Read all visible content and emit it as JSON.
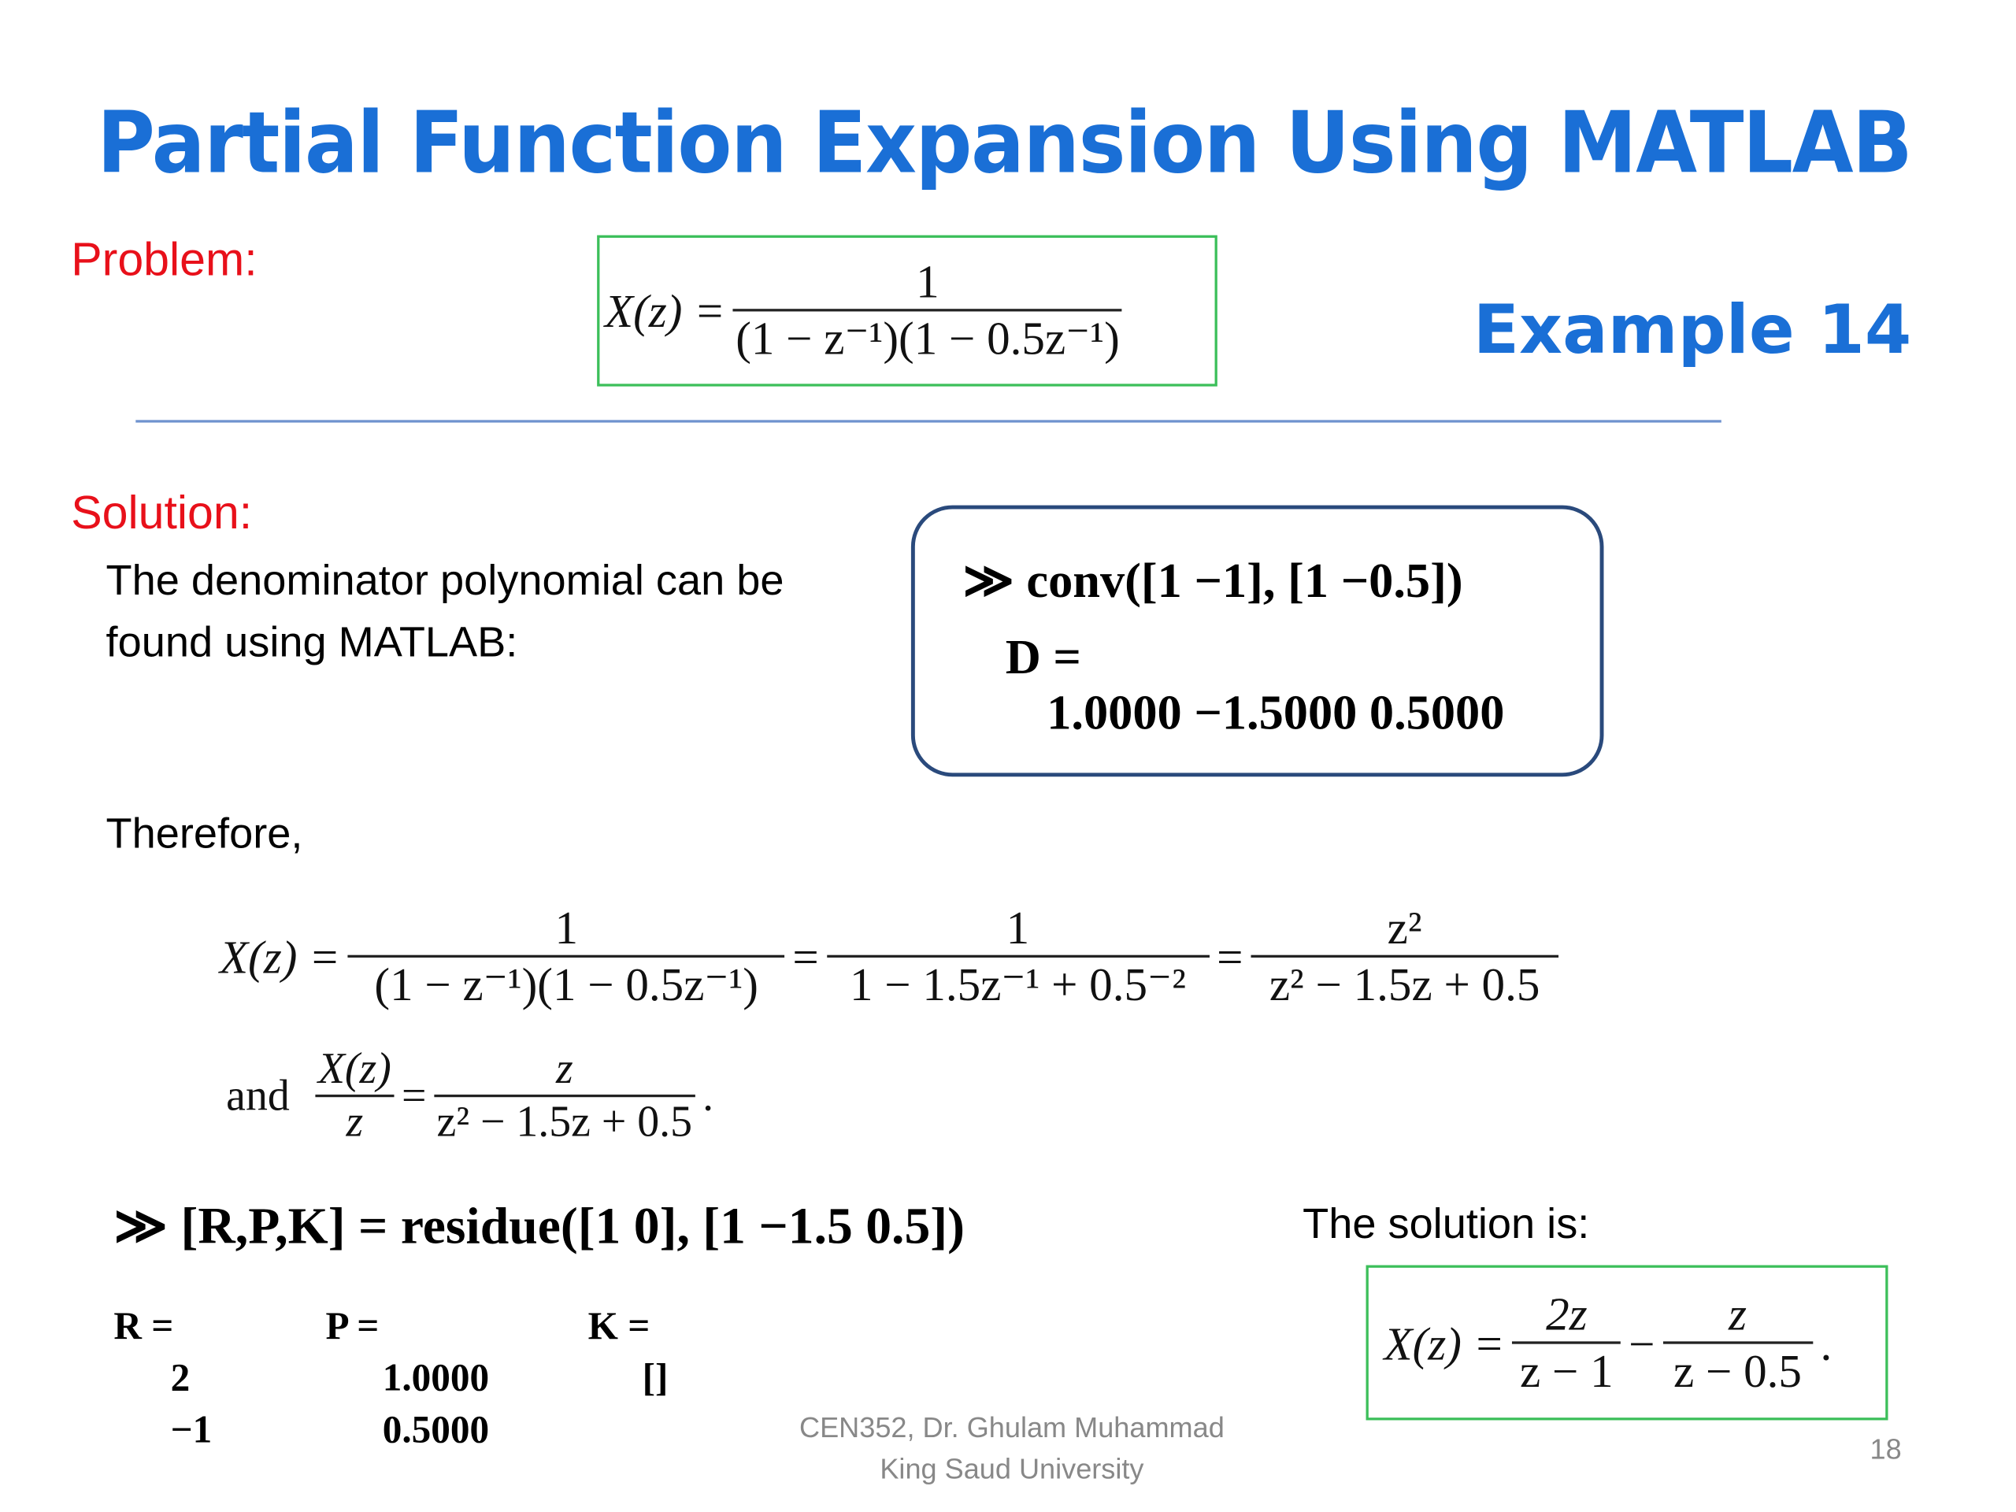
{
  "title": "Partial Function Expansion Using MATLAB",
  "example_label": "Example 14",
  "problem_label": "Problem:",
  "problem_eq": {
    "lhs": "X(z) =",
    "num": "1",
    "den": "(1 − z⁻¹)(1 − 0.5z⁻¹)"
  },
  "solution_label": "Solution:",
  "intro_lines": [
    "The denominator polynomial can be",
    "found using MATLAB:"
  ],
  "matlab_box": {
    "command": "≫ conv([1  −1], [1  −0.5])",
    "var": "D =",
    "result": "1.0000  −1.5000  0.5000"
  },
  "therefore": "Therefore,",
  "eq1": {
    "lhs": "X(z) =",
    "f1_num": "1",
    "f1_den": "(1 − z⁻¹)(1 − 0.5z⁻¹)",
    "eq": "=",
    "f2_num": "1",
    "f2_den": "1 − 1.5z⁻¹ + 0.5⁻²",
    "f3_num": "z²",
    "f3_den": "z² − 1.5z + 0.5"
  },
  "eq2": {
    "and": "and",
    "l_num": "X(z)",
    "l_den": "z",
    "eq": "=",
    "r_num": "z",
    "r_den": "z² − 1.5z + 0.5",
    "end": "."
  },
  "residue_cmd": "≫ [R,P,K] = residue([1  0], [1  −1.5  0.5])",
  "results": {
    "R": {
      "label": "R =",
      "values": [
        "2",
        "−1"
      ]
    },
    "P": {
      "label": "P =",
      "values": [
        "1.0000",
        "0.5000"
      ]
    },
    "K": {
      "label": "K =",
      "values": [
        "[]"
      ]
    }
  },
  "solution_is": "The solution is:",
  "solution_eq": {
    "lhs": "X(z) =",
    "f1_num": "2z",
    "f1_den": "z − 1",
    "op": "−",
    "f2_num": "z",
    "f2_den": "z − 0.5",
    "end": "."
  },
  "footer": [
    "CEN352, Dr. Ghulam Muhammad",
    "King Saud University"
  ],
  "page_number": "18",
  "colors": {
    "title": "#1a6fd6",
    "labels": "#e8101a",
    "box_green": "#3cbf5a",
    "box_navy": "#2a4a7c",
    "rule": "#6f93cf"
  }
}
